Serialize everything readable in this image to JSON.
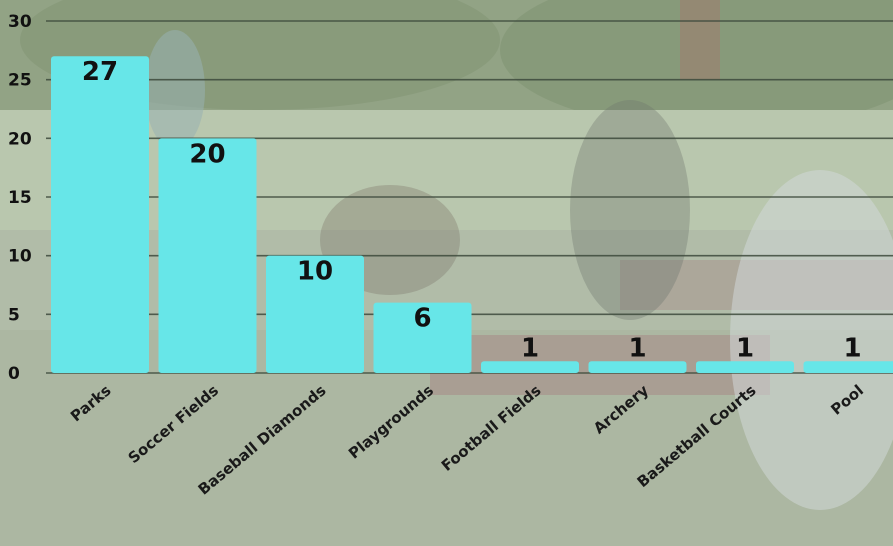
{
  "chart_data": {
    "type": "bar",
    "title": "",
    "xlabel": "",
    "ylabel": "",
    "categories": [
      "Parks",
      "Soccer Fields",
      "Baseball Diamonds",
      "Playgrounds",
      "Football Fields",
      "Archery",
      "Basketball Courts",
      "Pool"
    ],
    "values": [
      27,
      20,
      10,
      6,
      1,
      1,
      1,
      1
    ],
    "data_labels": [
      "27",
      "20",
      "10",
      "6",
      "1",
      "1",
      "1",
      "1"
    ],
    "ylim": [
      0,
      30
    ],
    "yticks": [
      0,
      5,
      10,
      15,
      20,
      25,
      30
    ],
    "grid": true,
    "legend": "none",
    "bar_color": "#67e6e8",
    "background": "photo of people at picnic tables in a park, washed out"
  }
}
